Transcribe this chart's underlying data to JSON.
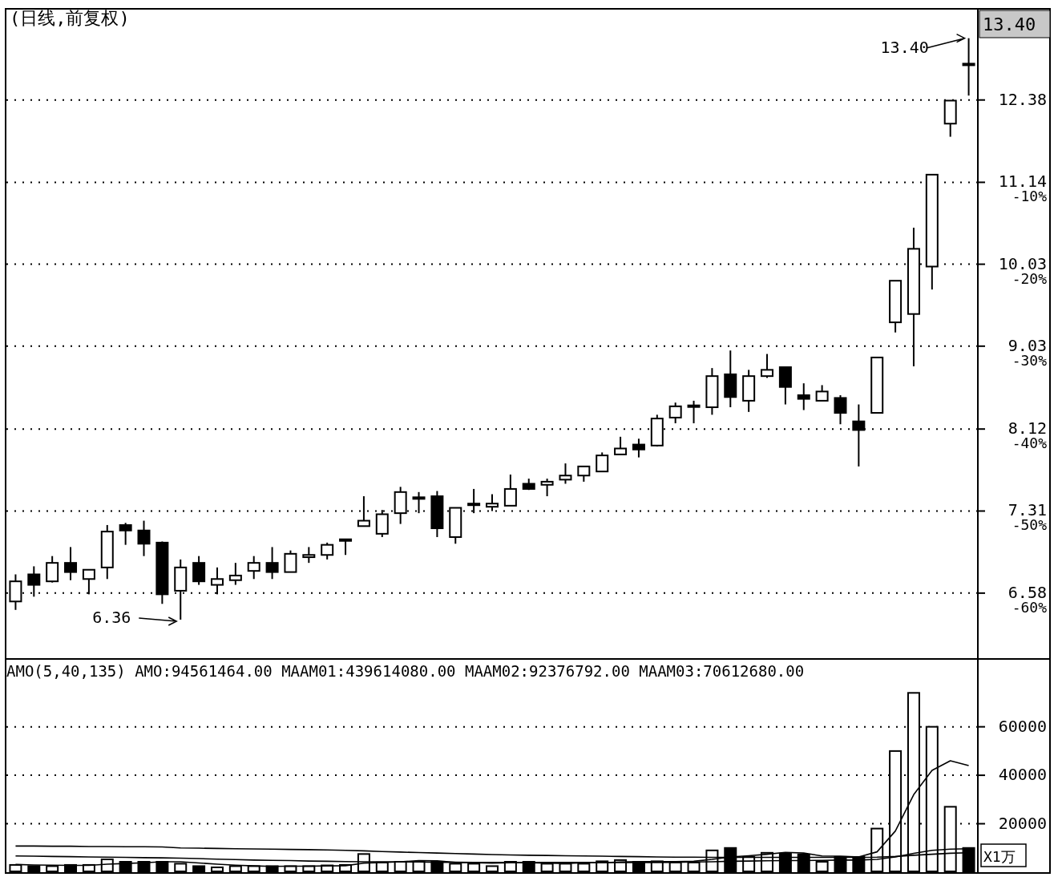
{
  "chart_data": [
    {
      "type": "candlestick",
      "title": "(日线,前复权)",
      "log": "y",
      "grid": "y",
      "tick_labels": "y",
      "categories": [
        null,
        null,
        null,
        null,
        null,
        null,
        null,
        null,
        null,
        null,
        null,
        null,
        null,
        null,
        null,
        null,
        null,
        null,
        null,
        null,
        null,
        null,
        null,
        null,
        null,
        null,
        null,
        null,
        null,
        null,
        null,
        null,
        null,
        null,
        null,
        null,
        null,
        null,
        null,
        null,
        null,
        null,
        null,
        null,
        null,
        null,
        null,
        null,
        null,
        null,
        null,
        null,
        null
      ],
      "ohlc": [
        [
          6.51,
          6.74,
          6.44,
          6.68
        ],
        [
          6.74,
          6.81,
          6.55,
          6.65
        ],
        [
          6.68,
          6.9,
          6.67,
          6.84
        ],
        [
          6.84,
          6.98,
          6.69,
          6.76
        ],
        [
          6.7,
          6.78,
          6.57,
          6.78
        ],
        [
          6.8,
          7.18,
          6.7,
          7.12
        ],
        [
          7.18,
          7.2,
          7.0,
          7.13
        ],
        [
          7.13,
          7.22,
          6.9,
          7.01
        ],
        [
          7.02,
          7.03,
          6.49,
          6.57
        ],
        [
          6.6,
          6.87,
          6.36,
          6.8
        ],
        [
          6.84,
          6.9,
          6.65,
          6.68
        ],
        [
          6.65,
          6.8,
          6.57,
          6.7
        ],
        [
          6.69,
          6.84,
          6.65,
          6.73
        ],
        [
          6.77,
          6.9,
          6.7,
          6.84
        ],
        [
          6.84,
          6.98,
          6.7,
          6.76
        ],
        [
          6.76,
          6.95,
          6.76,
          6.92
        ],
        [
          6.89,
          6.98,
          6.84,
          6.91
        ],
        [
          6.91,
          7.02,
          6.87,
          7.0
        ],
        [
          7.04,
          7.05,
          6.91,
          7.05
        ],
        [
          7.17,
          7.45,
          7.17,
          7.22
        ],
        [
          7.1,
          7.32,
          7.07,
          7.28
        ],
        [
          7.29,
          7.54,
          7.19,
          7.49
        ],
        [
          7.43,
          7.49,
          7.29,
          7.44
        ],
        [
          7.45,
          7.5,
          7.07,
          7.15
        ],
        [
          7.07,
          7.34,
          7.01,
          7.34
        ],
        [
          7.37,
          7.52,
          7.29,
          7.38
        ],
        [
          7.35,
          7.47,
          7.31,
          7.38
        ],
        [
          7.36,
          7.66,
          7.36,
          7.52
        ],
        [
          7.57,
          7.62,
          7.51,
          7.52
        ],
        [
          7.56,
          7.62,
          7.45,
          7.59
        ],
        [
          7.61,
          7.77,
          7.57,
          7.65
        ],
        [
          7.65,
          7.74,
          7.59,
          7.74
        ],
        [
          7.69,
          7.88,
          7.69,
          7.85
        ],
        [
          7.86,
          8.04,
          7.86,
          7.92
        ],
        [
          7.96,
          8.02,
          7.83,
          7.91
        ],
        [
          7.95,
          8.27,
          7.94,
          8.23
        ],
        [
          8.24,
          8.4,
          8.18,
          8.36
        ],
        [
          8.36,
          8.42,
          8.18,
          8.37
        ],
        [
          8.35,
          8.78,
          8.27,
          8.69
        ],
        [
          8.71,
          8.98,
          8.35,
          8.46
        ],
        [
          8.42,
          8.76,
          8.3,
          8.69
        ],
        [
          8.69,
          8.94,
          8.67,
          8.76
        ],
        [
          8.79,
          8.79,
          8.38,
          8.57
        ],
        [
          8.48,
          8.61,
          8.32,
          8.44
        ],
        [
          8.42,
          8.59,
          8.42,
          8.52
        ],
        [
          8.45,
          8.48,
          8.17,
          8.29
        ],
        [
          8.2,
          8.38,
          7.74,
          8.11
        ],
        [
          8.29,
          8.9,
          8.29,
          8.9
        ],
        [
          9.31,
          9.82,
          9.19,
          9.82
        ],
        [
          9.41,
          10.51,
          8.8,
          10.23
        ],
        [
          10.0,
          11.25,
          9.71,
          11.25
        ],
        [
          12.01,
          12.37,
          11.81,
          12.37
        ],
        [
          12.97,
          13.4,
          12.45,
          12.96
        ]
      ],
      "ylim": [
        6.06,
        13.9
      ],
      "yticks": [
        6.58,
        7.31,
        8.12,
        9.03,
        10.03,
        11.14,
        12.38
      ],
      "y2lim": [
        -67.8,
        10.95
      ],
      "y2ticks": [
        {
          "value": -60,
          "label": "-60%"
        },
        {
          "value": -50,
          "label": "-50%"
        },
        {
          "value": -40,
          "label": "-40%"
        },
        {
          "value": -30,
          "label": "-30%"
        },
        {
          "value": -20,
          "label": "-20%"
        },
        {
          "value": -10,
          "label": "-10%"
        }
      ],
      "annotations": [
        "6.36",
        "13.40",
        "13.40"
      ]
    },
    {
      "type": "bar",
      "title": "AMO(5,40,135) AMO:94561464.00 MAAM01:439614080.00 MAAM02:92376792.00 MAAM03:70612680.00",
      "ylabel": "X1万",
      "grid": "y",
      "tick_labels": "y",
      "categories": [
        null,
        null,
        null,
        null,
        null,
        null,
        null,
        null,
        null,
        null,
        null,
        null,
        null,
        null,
        null,
        null,
        null,
        null,
        null,
        null,
        null,
        null,
        null,
        null,
        null,
        null,
        null,
        null,
        null,
        null,
        null,
        null,
        null,
        null,
        null,
        null,
        null,
        null,
        null,
        null,
        null,
        null,
        null,
        null,
        null,
        null,
        null,
        null,
        null,
        null,
        null,
        null,
        null
      ],
      "ylim": [
        0,
        88000
      ],
      "yticks": [
        20000,
        40000,
        60000
      ],
      "series": [
        {
          "type": "bar",
          "values": [
            3000,
            2500,
            2500,
            3000,
            3000,
            5300,
            4300,
            4300,
            4300,
            3500,
            2500,
            2000,
            2500,
            2500,
            2500,
            2500,
            2500,
            2800,
            3000,
            7500,
            4000,
            4300,
            4300,
            4300,
            3500,
            3500,
            2500,
            4300,
            4300,
            3500,
            3500,
            3500,
            4500,
            5000,
            4300,
            4500,
            4000,
            4000,
            9000,
            10000,
            6300,
            8000,
            7700,
            7300,
            4300,
            6300,
            6300,
            18000,
            50000,
            74000,
            60000,
            27000,
            10000
          ],
          "colors": [
            "#ffffff",
            "#000000",
            "#ffffff",
            "#000000",
            "#ffffff",
            "#ffffff",
            "#000000",
            "#000000",
            "#000000",
            "#ffffff",
            "#000000",
            "#ffffff",
            "#ffffff",
            "#ffffff",
            "#000000",
            "#ffffff",
            "#ffffff",
            "#ffffff",
            "#ffffff",
            "#ffffff",
            "#ffffff",
            "#ffffff",
            "#ffffff",
            "#000000",
            "#ffffff",
            "#ffffff",
            "#ffffff",
            "#ffffff",
            "#000000",
            "#ffffff",
            "#ffffff",
            "#ffffff",
            "#ffffff",
            "#ffffff",
            "#000000",
            "#ffffff",
            "#ffffff",
            "#ffffff",
            "#ffffff",
            "#000000",
            "#ffffff",
            "#ffffff",
            "#000000",
            "#000000",
            "#ffffff",
            "#000000",
            "#000000",
            "#ffffff",
            "#ffffff",
            "#ffffff",
            "#ffffff",
            "#ffffff",
            "#000000"
          ]
        },
        {
          "type": "line",
          "color": "#000000",
          "values": [
            3200,
            3000,
            2900,
            2800,
            2800,
            3300,
            3600,
            3900,
            4300,
            4300,
            3800,
            3300,
            2900,
            2600,
            2400,
            2500,
            2500,
            2600,
            2700,
            3700,
            4000,
            4300,
            4800,
            4700,
            4000,
            3900,
            3700,
            3900,
            3900,
            3700,
            3600,
            3900,
            3900,
            4200,
            4400,
            4400,
            4400,
            4500,
            5300,
            6300,
            6800,
            7400,
            8200,
            7900,
            6700,
            6600,
            6300,
            8400,
            17000,
            32000,
            42000,
            46000,
            44000
          ]
        },
        {
          "type": "line",
          "color": "#000000",
          "values": [
            6700,
            6600,
            6500,
            6400,
            6300,
            6200,
            6100,
            6000,
            5900,
            5800,
            5600,
            5400,
            5200,
            5000,
            4900,
            4800,
            4600,
            4500,
            4400,
            4300,
            4300,
            4200,
            4200,
            4100,
            4100,
            4000,
            4000,
            4000,
            4000,
            4000,
            4000,
            4000,
            4000,
            4000,
            4000,
            4000,
            4100,
            4200,
            4300,
            4500,
            4600,
            4700,
            4800,
            4800,
            4900,
            5000,
            5000,
            5300,
            6300,
            7800,
            9000,
            9500,
            9700
          ]
        },
        {
          "type": "line",
          "color": "#000000",
          "values": [
            10800,
            10800,
            10700,
            10700,
            10600,
            10600,
            10500,
            10500,
            10400,
            10000,
            9900,
            9800,
            9700,
            9600,
            9500,
            9400,
            9300,
            9200,
            9000,
            8800,
            8500,
            8300,
            8100,
            7900,
            7700,
            7500,
            7300,
            7100,
            7000,
            6900,
            6800,
            6700,
            6600,
            6500,
            6400,
            6300,
            6200,
            6200,
            6100,
            6100,
            6100,
            6100,
            6100,
            6100,
            6100,
            6100,
            6100,
            6200,
            6500,
            7000,
            7400,
            7800,
            8000
          ]
        }
      ]
    }
  ]
}
